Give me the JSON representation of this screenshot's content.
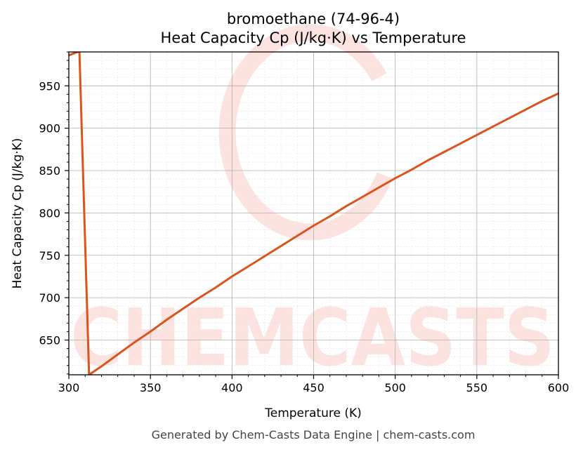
{
  "chart_data": {
    "type": "line",
    "title": "bromoethane (74-96-4)",
    "subtitle": "Heat Capacity Cp (J/kg·K) vs Temperature",
    "xlabel": "Temperature (K)",
    "ylabel": "Heat Capacity Cp (J/kg·K)",
    "xlim": [
      300,
      600
    ],
    "ylim": [
      609,
      990
    ],
    "x_ticks": [
      300,
      350,
      400,
      450,
      500,
      550,
      600
    ],
    "y_ticks": [
      650,
      700,
      750,
      800,
      850,
      900,
      950
    ],
    "grid": true,
    "series": [
      {
        "color": "#d9541e",
        "x": [
          300,
          305.4,
          306.5,
          312.4,
          320,
          330,
          340,
          350,
          360,
          370,
          380,
          390,
          400,
          410,
          420,
          430,
          440,
          450,
          460,
          470,
          480,
          490,
          500,
          510,
          520,
          530,
          540,
          550,
          560,
          570,
          580,
          590,
          600
        ],
        "y": [
          986,
          990,
          990,
          609,
          619,
          633,
          647,
          660,
          674,
          687,
          700,
          712,
          725,
          737,
          749,
          761,
          773,
          785,
          796,
          808,
          819,
          830,
          841,
          851,
          862,
          872,
          882,
          892,
          902,
          912,
          922,
          932,
          941
        ]
      }
    ]
  },
  "footer": "Generated by Chem-Casts Data Engine | chem-casts.com",
  "watermark": "CHEMCASTS"
}
